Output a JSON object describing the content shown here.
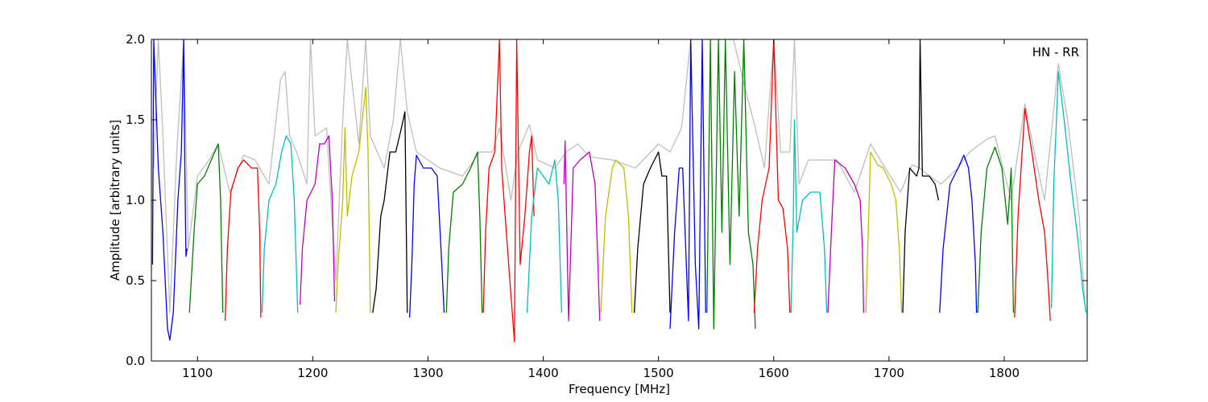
{
  "chart_data": {
    "type": "line",
    "xlabel": "Frequency [MHz]",
    "ylabel": "Amplitude [arbitrary units]",
    "annotation": "HN - RR",
    "xlim": [
      1060,
      1872
    ],
    "ylim": [
      0,
      2
    ],
    "xticks": [
      1100,
      1200,
      1300,
      1400,
      1500,
      1600,
      1700,
      1800
    ],
    "yticks": [
      {
        "value": 0,
        "label": "0.0"
      },
      0.5,
      {
        "value": 1,
        "label": "1.0"
      },
      1.5,
      {
        "value": 2,
        "label": "2.0"
      }
    ],
    "series": [
      {
        "color": "#bfbfbf",
        "x": [
          1062,
          1066,
          1070,
          1076,
          1082,
          1088,
          1092,
          1100,
          1110,
          1118,
          1128,
          1140,
          1150,
          1162,
          1172,
          1176,
          1180,
          1186,
          1195,
          1198,
          1202,
          1212,
          1220,
          1226,
          1230,
          1240,
          1246,
          1250,
          1262,
          1270,
          1276,
          1282,
          1290,
          1310,
          1330,
          1345,
          1356,
          1362,
          1372,
          1378,
          1388,
          1395,
          1410,
          1420,
          1430,
          1440,
          1460,
          1480,
          1500,
          1510,
          1520,
          1528,
          1536,
          1545,
          1555,
          1565,
          1575,
          1584,
          1592,
          1600,
          1606,
          1614,
          1618,
          1622,
          1630,
          1640,
          1655,
          1670,
          1684,
          1695,
          1710,
          1720,
          1727,
          1735,
          1745,
          1760,
          1770,
          1785,
          1792,
          1806,
          1812,
          1818,
          1826,
          1835,
          1847,
          1855,
          1865,
          1870
        ],
        "values": [
          1.2,
          2.0,
          1.4,
          0.3,
          1.3,
          2.0,
          0.7,
          1.15,
          1.25,
          1.35,
          1.05,
          1.28,
          1.25,
          1.1,
          1.75,
          1.8,
          1.4,
          1.3,
          1.1,
          2.0,
          1.4,
          1.45,
          0.5,
          1.5,
          2.0,
          1.35,
          2.0,
          1.4,
          1.2,
          1.5,
          2.0,
          1.55,
          1.3,
          1.2,
          1.15,
          1.3,
          1.3,
          1.45,
          1.0,
          1.3,
          1.47,
          1.25,
          1.2,
          1.3,
          1.35,
          1.27,
          1.25,
          1.2,
          1.35,
          1.3,
          1.45,
          2.0,
          2.0,
          2.0,
          2.0,
          2.0,
          1.7,
          1.45,
          1.2,
          2.0,
          1.3,
          1.3,
          2.0,
          1.1,
          1.25,
          1.25,
          1.25,
          1.05,
          1.35,
          1.22,
          1.05,
          1.22,
          1.2,
          1.15,
          1.1,
          1.2,
          1.3,
          1.38,
          1.4,
          1.0,
          1.3,
          1.6,
          1.3,
          1.0,
          1.85,
          1.5,
          0.9,
          0.35
        ]
      },
      {
        "color": "#0000ff",
        "x": [
          1061,
          1062,
          1066,
          1070,
          1074,
          1076,
          1079,
          1083,
          1086,
          1088,
          1089,
          1090,
          1091
        ],
        "values": [
          0.6,
          2.0,
          1.2,
          0.8,
          0.2,
          0.13,
          0.3,
          1.0,
          1.3,
          2.0,
          1.2,
          0.65,
          0.7
        ]
      },
      {
        "color": "#008000",
        "x": [
          1093,
          1097,
          1100,
          1106,
          1112,
          1118,
          1120,
          1122
        ],
        "values": [
          0.3,
          0.8,
          1.1,
          1.15,
          1.25,
          1.35,
          1.0,
          0.3
        ]
      },
      {
        "color": "#ff0000",
        "x": [
          1124,
          1126,
          1129,
          1135,
          1140,
          1147,
          1152,
          1154,
          1155
        ],
        "values": [
          0.25,
          0.7,
          1.05,
          1.2,
          1.25,
          1.2,
          1.2,
          0.8,
          0.27
        ]
      },
      {
        "color": "#00bfbf",
        "x": [
          1156,
          1158,
          1162,
          1168,
          1173,
          1177,
          1181,
          1184,
          1187
        ],
        "values": [
          0.3,
          0.7,
          1.0,
          1.1,
          1.3,
          1.4,
          1.35,
          1.0,
          0.3
        ]
      },
      {
        "color": "#bf00bf",
        "x": [
          1189,
          1191,
          1195,
          1202,
          1206,
          1210,
          1214,
          1217,
          1219
        ],
        "values": [
          0.35,
          0.7,
          1.0,
          1.1,
          1.35,
          1.35,
          1.4,
          1.0,
          0.37
        ]
      },
      {
        "color": "#bfbf00",
        "x": [
          1220,
          1222,
          1226,
          1228,
          1230,
          1234,
          1240,
          1246,
          1248,
          1250
        ],
        "values": [
          0.3,
          0.6,
          1.0,
          1.45,
          0.9,
          1.15,
          1.3,
          1.7,
          1.3,
          0.3
        ]
      },
      {
        "color": "#000000",
        "x": [
          1252,
          1255,
          1259,
          1262,
          1267,
          1272,
          1277,
          1280,
          1282
        ],
        "values": [
          0.3,
          0.45,
          0.9,
          1.0,
          1.3,
          1.3,
          1.45,
          1.55,
          0.3
        ]
      },
      {
        "color": "#0000ff",
        "x": [
          1284,
          1286,
          1288,
          1290,
          1296,
          1303,
          1308,
          1312,
          1314
        ],
        "values": [
          0.27,
          0.6,
          1.1,
          1.28,
          1.2,
          1.2,
          1.15,
          0.6,
          0.3
        ]
      },
      {
        "color": "#008000",
        "x": [
          1316,
          1318,
          1322,
          1330,
          1337,
          1343,
          1345,
          1347
        ],
        "values": [
          0.3,
          0.7,
          1.05,
          1.1,
          1.2,
          1.3,
          0.9,
          0.3
        ]
      },
      {
        "color": "#ff0000",
        "x": [
          1348,
          1350,
          1353,
          1358,
          1362,
          1364,
          1367,
          1371,
          1375,
          1377,
          1380,
          1384,
          1388,
          1390,
          1392
        ],
        "values": [
          0.3,
          0.8,
          1.2,
          1.3,
          2.0,
          1.2,
          0.9,
          0.5,
          0.12,
          2.0,
          0.6,
          0.9,
          1.3,
          1.4,
          0.9
        ]
      },
      {
        "color": "#00bfbf",
        "x": [
          1386,
          1390,
          1395,
          1400,
          1405,
          1410,
          1413,
          1416
        ],
        "values": [
          0.3,
          0.9,
          1.2,
          1.15,
          1.1,
          1.25,
          1.0,
          0.3
        ]
      },
      {
        "color": "#bf00bf",
        "x": [
          1418,
          1419,
          1422,
          1426,
          1432,
          1440,
          1445,
          1447,
          1449
        ],
        "values": [
          1.1,
          1.37,
          0.25,
          1.2,
          1.25,
          1.3,
          1.1,
          0.7,
          0.25
        ]
      },
      {
        "color": "#bfbf00",
        "x": [
          1450,
          1454,
          1460,
          1463,
          1470,
          1474,
          1477
        ],
        "values": [
          0.3,
          0.9,
          1.2,
          1.25,
          1.2,
          0.9,
          0.3
        ]
      },
      {
        "color": "#000000",
        "x": [
          1479,
          1482,
          1487,
          1493,
          1500,
          1503,
          1507,
          1510
        ],
        "values": [
          0.3,
          0.7,
          1.1,
          1.2,
          1.3,
          1.15,
          1.15,
          0.3
        ]
      },
      {
        "color": "#0000ff",
        "x": [
          1510,
          1514,
          1518,
          1521,
          1526,
          1528,
          1532,
          1535,
          1538,
          1541
        ],
        "values": [
          0.2,
          0.8,
          1.2,
          1.2,
          0.25,
          2.0,
          0.6,
          0.2,
          2.0,
          0.3
        ]
      },
      {
        "color": "#008000",
        "x": [
          1542,
          1545,
          1548,
          1552,
          1555,
          1558,
          1562,
          1566,
          1570,
          1574,
          1578,
          1582,
          1584
        ],
        "values": [
          0.3,
          2.0,
          0.2,
          2.0,
          0.8,
          2.0,
          0.6,
          1.8,
          0.9,
          2.0,
          0.8,
          0.6,
          0.2
        ]
      },
      {
        "color": "#ff0000",
        "x": [
          1583,
          1586,
          1590,
          1596,
          1600,
          1604,
          1608,
          1612,
          1614
        ],
        "values": [
          0.3,
          0.7,
          1.0,
          1.2,
          2.0,
          1.0,
          0.95,
          0.7,
          0.3
        ]
      },
      {
        "color": "#00bfbf",
        "x": [
          1615,
          1617,
          1618,
          1620,
          1625,
          1632,
          1640,
          1644,
          1646
        ],
        "values": [
          0.3,
          0.9,
          1.5,
          0.8,
          1.0,
          1.05,
          1.05,
          0.7,
          0.3
        ]
      },
      {
        "color": "#bf00bf",
        "x": [
          1647,
          1650,
          1653,
          1662,
          1670,
          1675,
          1677,
          1678
        ],
        "values": [
          0.3,
          0.8,
          1.25,
          1.2,
          1.1,
          1.0,
          0.7,
          0.3
        ]
      },
      {
        "color": "#bfbf00",
        "x": [
          1680,
          1682,
          1684,
          1690,
          1695,
          1702,
          1706,
          1709,
          1711
        ],
        "values": [
          0.3,
          0.8,
          1.3,
          1.22,
          1.2,
          1.1,
          1.0,
          0.7,
          0.3
        ]
      },
      {
        "color": "#000000",
        "x": [
          1712,
          1714,
          1718,
          1724,
          1726,
          1727,
          1729,
          1735,
          1740,
          1743
        ],
        "values": [
          0.3,
          0.8,
          1.2,
          1.15,
          1.2,
          2.0,
          1.15,
          1.15,
          1.1,
          1.0
        ]
      },
      {
        "color": "#0000ff",
        "x": [
          1744,
          1747,
          1753,
          1760,
          1765,
          1769,
          1772,
          1775,
          1776
        ],
        "values": [
          0.3,
          0.7,
          1.1,
          1.2,
          1.28,
          1.2,
          1.0,
          0.6,
          0.3
        ]
      },
      {
        "color": "#008000",
        "x": [
          1777,
          1780,
          1785,
          1792,
          1798,
          1803,
          1806,
          1808
        ],
        "values": [
          0.3,
          0.8,
          1.2,
          1.33,
          1.2,
          0.85,
          1.2,
          0.3
        ]
      },
      {
        "color": "#ff0000",
        "x": [
          1809,
          1812,
          1818,
          1824,
          1830,
          1835,
          1838,
          1840
        ],
        "values": [
          0.27,
          0.9,
          1.57,
          1.3,
          1.0,
          0.8,
          0.5,
          0.25
        ]
      },
      {
        "color": "#00bfbf",
        "x": [
          1841,
          1843,
          1847,
          1852,
          1858,
          1864,
          1868,
          1871
        ],
        "values": [
          0.33,
          1.1,
          1.8,
          1.5,
          1.1,
          0.75,
          0.45,
          0.3
        ]
      }
    ]
  }
}
